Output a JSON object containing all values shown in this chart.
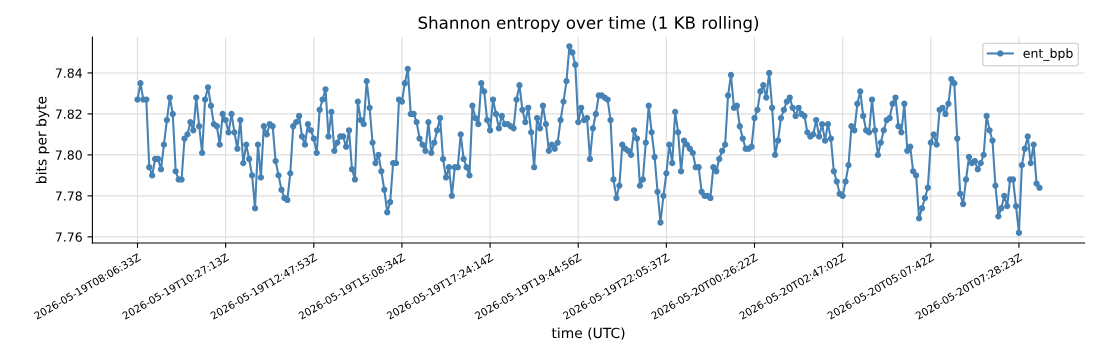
{
  "chart_data": {
    "type": "line",
    "title": "Shannon entropy over time (1 KB rolling)",
    "xlabel": "time (UTC)",
    "ylabel": "bits per byte",
    "ylim": [
      7.757,
      7.8575
    ],
    "yticks": [
      7.76,
      7.78,
      {
        "value": 7.8,
        "label": "7.80"
      },
      7.82,
      7.84
    ],
    "grid": true,
    "legend": "top right",
    "marker": "circle",
    "line_style": "solid",
    "categories": [
      "2026-05-19T08:06:33Z",
      null,
      null,
      null,
      null,
      null,
      null,
      null,
      null,
      null,
      null,
      null,
      null,
      null,
      null,
      null,
      null,
      null,
      null,
      null,
      null,
      null,
      null,
      null,
      null,
      null,
      null,
      null,
      null,
      null,
      "2026-05-19T10:27:13Z",
      null,
      null,
      null,
      null,
      null,
      null,
      null,
      null,
      null,
      null,
      null,
      null,
      null,
      null,
      null,
      null,
      null,
      null,
      null,
      null,
      null,
      null,
      null,
      null,
      null,
      null,
      null,
      null,
      null,
      "2026-05-19T12:47:53Z",
      null,
      null,
      null,
      null,
      null,
      null,
      null,
      null,
      null,
      null,
      null,
      null,
      null,
      null,
      null,
      null,
      null,
      null,
      null,
      null,
      null,
      null,
      null,
      null,
      null,
      null,
      null,
      null,
      null,
      "2026-05-19T15:08:34Z",
      null,
      null,
      null,
      null,
      null,
      null,
      null,
      null,
      null,
      null,
      null,
      null,
      null,
      null,
      null,
      null,
      null,
      null,
      null,
      null,
      null,
      null,
      null,
      null,
      null,
      null,
      null,
      null,
      null,
      "2026-05-19T17:24:14Z",
      null,
      null,
      null,
      null,
      null,
      null,
      null,
      null,
      null,
      null,
      null,
      null,
      null,
      null,
      null,
      null,
      null,
      null,
      null,
      null,
      null,
      null,
      null,
      null,
      null,
      null,
      null,
      null,
      null,
      "2026-05-19T19:44:56Z",
      null,
      null,
      null,
      null,
      null,
      null,
      null,
      null,
      null,
      null,
      null,
      null,
      null,
      null,
      null,
      null,
      null,
      null,
      null,
      null,
      null,
      null,
      null,
      null,
      null,
      null,
      null,
      null,
      null,
      "2026-05-19T22:05:37Z",
      null,
      null,
      null,
      null,
      null,
      null,
      null,
      null,
      null,
      null,
      null,
      null,
      null,
      null,
      null,
      null,
      null,
      null,
      null,
      null,
      null,
      null,
      null,
      null,
      null,
      null,
      null,
      null,
      null,
      "2026-05-20T00:26:22Z",
      null,
      null,
      null,
      null,
      null,
      null,
      null,
      null,
      null,
      null,
      null,
      null,
      null,
      null,
      null,
      null,
      null,
      null,
      null,
      null,
      null,
      null,
      null,
      null,
      null,
      null,
      null,
      null,
      null,
      "2026-05-20T02:47:02Z",
      null,
      null,
      null,
      null,
      null,
      null,
      null,
      null,
      null,
      null,
      null,
      null,
      null,
      null,
      null,
      null,
      null,
      null,
      null,
      null,
      null,
      null,
      null,
      null,
      null,
      null,
      null,
      null,
      null,
      "2026-05-20T05:07:42Z",
      null,
      null,
      null,
      null,
      null,
      null,
      null,
      null,
      null,
      null,
      null,
      null,
      null,
      null,
      null,
      null,
      null,
      null,
      null,
      null,
      null,
      null,
      null,
      null,
      null,
      null,
      null,
      null,
      null,
      "2026-05-20T07:28:23Z",
      null,
      null,
      null,
      null,
      null,
      null,
      null
    ],
    "series": [
      {
        "name": "ent_bpb",
        "color": "#4682b4",
        "values": [
          7.827,
          7.835,
          7.827,
          7.827,
          7.794,
          7.79,
          7.798,
          7.798,
          7.793,
          7.805,
          7.817,
          7.828,
          7.82,
          7.792,
          7.788,
          7.788,
          7.808,
          7.81,
          7.816,
          7.812,
          7.828,
          7.814,
          7.801,
          7.827,
          7.833,
          7.824,
          7.815,
          7.814,
          7.805,
          7.82,
          7.817,
          7.811,
          7.82,
          7.811,
          7.803,
          7.817,
          7.796,
          7.805,
          7.798,
          7.79,
          7.774,
          7.805,
          7.789,
          7.814,
          7.81,
          7.815,
          7.814,
          7.797,
          7.79,
          7.783,
          7.779,
          7.778,
          7.791,
          7.814,
          7.816,
          7.819,
          7.809,
          7.805,
          7.815,
          7.812,
          7.808,
          7.801,
          7.822,
          7.827,
          7.832,
          7.809,
          7.821,
          7.802,
          7.806,
          7.809,
          7.809,
          7.804,
          7.812,
          7.793,
          7.788,
          7.826,
          7.817,
          7.815,
          7.836,
          7.823,
          7.806,
          7.796,
          7.8,
          7.792,
          7.783,
          7.772,
          7.777,
          7.796,
          7.796,
          7.827,
          7.826,
          7.835,
          7.842,
          7.82,
          7.82,
          7.816,
          7.808,
          7.805,
          7.802,
          7.816,
          7.801,
          7.806,
          7.812,
          7.818,
          7.798,
          7.789,
          7.794,
          7.78,
          7.794,
          7.794,
          7.81,
          7.798,
          7.794,
          7.79,
          7.824,
          7.818,
          7.815,
          7.835,
          7.831,
          7.817,
          7.812,
          7.827,
          7.82,
          7.813,
          7.819,
          7.815,
          7.815,
          7.814,
          7.813,
          7.827,
          7.834,
          7.822,
          7.816,
          7.823,
          7.811,
          7.794,
          7.818,
          7.813,
          7.824,
          7.815,
          7.802,
          7.805,
          7.803,
          7.806,
          7.817,
          7.826,
          7.836,
          7.853,
          7.85,
          7.844,
          7.816,
          7.823,
          7.817,
          7.818,
          7.798,
          7.813,
          7.82,
          7.829,
          7.829,
          7.828,
          7.827,
          7.817,
          7.788,
          7.779,
          7.785,
          7.805,
          7.803,
          7.802,
          7.8,
          7.812,
          7.808,
          7.785,
          7.788,
          7.806,
          7.824,
          7.811,
          7.799,
          7.782,
          7.767,
          7.78,
          7.791,
          7.805,
          7.796,
          7.821,
          7.811,
          7.792,
          7.807,
          7.805,
          7.803,
          7.801,
          7.794,
          7.794,
          7.782,
          7.78,
          7.78,
          7.779,
          7.794,
          7.792,
          7.798,
          7.802,
          7.805,
          7.829,
          7.839,
          7.823,
          7.824,
          7.814,
          7.808,
          7.803,
          7.803,
          7.804,
          7.818,
          7.822,
          7.831,
          7.834,
          7.828,
          7.84,
          7.823,
          7.8,
          7.807,
          7.818,
          7.822,
          7.826,
          7.828,
          7.823,
          7.819,
          7.823,
          7.82,
          7.819,
          7.811,
          7.809,
          7.81,
          7.817,
          7.809,
          7.815,
          7.807,
          7.815,
          7.808,
          7.792,
          7.787,
          7.781,
          7.78,
          7.787,
          7.795,
          7.814,
          7.812,
          7.825,
          7.831,
          7.819,
          7.812,
          7.811,
          7.827,
          7.812,
          7.8,
          7.806,
          7.812,
          7.817,
          7.818,
          7.825,
          7.828,
          7.814,
          7.811,
          7.825,
          7.802,
          7.804,
          7.792,
          7.79,
          7.769,
          7.774,
          7.779,
          7.784,
          7.806,
          7.81,
          7.805,
          7.822,
          7.823,
          7.82,
          7.825,
          7.837,
          7.835,
          7.808,
          7.781,
          7.776,
          7.788,
          7.799,
          7.796,
          7.797,
          7.793,
          7.796,
          7.8,
          7.819,
          7.812,
          7.807,
          7.785,
          7.77,
          7.774,
          7.78,
          7.775,
          7.788,
          7.788,
          7.775,
          7.762,
          7.795,
          7.803,
          7.809,
          7.796,
          7.805,
          7.786,
          7.784
        ]
      }
    ]
  }
}
